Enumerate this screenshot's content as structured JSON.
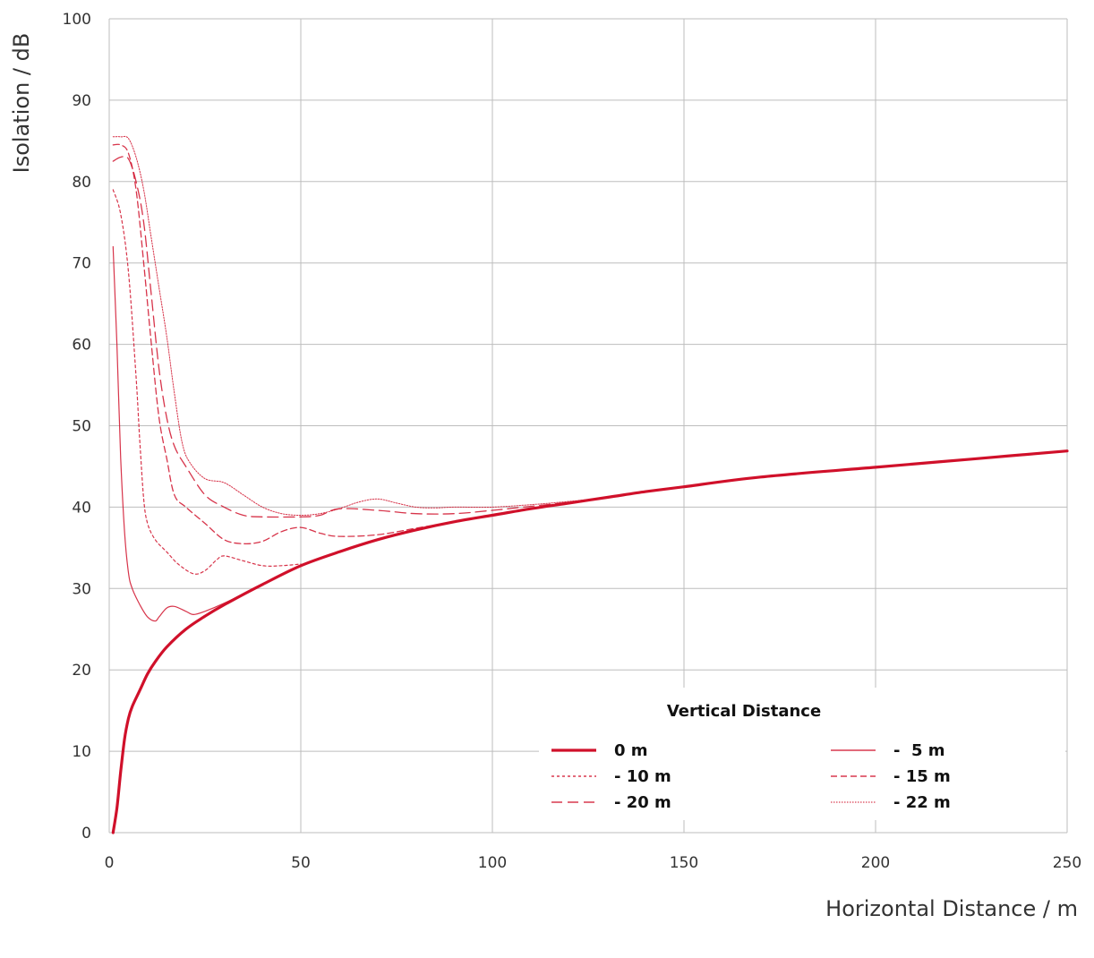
{
  "chart_data": {
    "type": "line",
    "xlabel": "Horizontal Distance / m",
    "ylabel": "Isolation / dB",
    "xlim": [
      0,
      250
    ],
    "ylim": [
      0,
      100
    ],
    "x_ticks": [
      0,
      50,
      100,
      150,
      200,
      250
    ],
    "y_ticks": [
      0,
      10,
      20,
      30,
      40,
      50,
      60,
      70,
      80,
      90,
      100
    ],
    "grid": true,
    "legend": {
      "title": "Vertical Distance",
      "placement": "bottom-right",
      "columns": 2
    },
    "series_color": "#d0102a",
    "series": [
      {
        "name": "0 m",
        "style": "solid-thick",
        "points": [
          [
            1,
            0
          ],
          [
            2,
            3
          ],
          [
            3,
            7.5
          ],
          [
            4,
            11.5
          ],
          [
            5,
            14
          ],
          [
            6,
            15.5
          ],
          [
            8,
            17.5
          ],
          [
            10,
            19.5
          ],
          [
            12,
            21
          ],
          [
            15,
            22.8
          ],
          [
            20,
            25
          ],
          [
            25,
            26.6
          ],
          [
            30,
            28
          ],
          [
            40,
            30.5
          ],
          [
            50,
            32.8
          ],
          [
            60,
            34.5
          ],
          [
            70,
            36
          ],
          [
            80,
            37.2
          ],
          [
            90,
            38.2
          ],
          [
            100,
            39
          ],
          [
            110,
            39.8
          ],
          [
            120,
            40.5
          ],
          [
            130,
            41.2
          ],
          [
            140,
            41.9
          ],
          [
            150,
            42.5
          ],
          [
            170,
            43.7
          ],
          [
            200,
            44.9
          ],
          [
            225,
            45.9
          ],
          [
            250,
            46.9
          ]
        ]
      },
      {
        "name": "-  5 m",
        "style": "solid-thin",
        "points": [
          [
            1,
            72
          ],
          [
            2,
            60
          ],
          [
            3,
            46
          ],
          [
            4,
            37
          ],
          [
            5,
            32
          ],
          [
            6,
            30
          ],
          [
            8,
            28
          ],
          [
            10,
            26.5
          ],
          [
            12,
            26
          ],
          [
            13,
            26.5
          ],
          [
            15,
            27.6
          ],
          [
            17,
            27.8
          ],
          [
            20,
            27.2
          ],
          [
            22,
            26.8
          ],
          [
            25,
            27.2
          ],
          [
            30,
            28.2
          ],
          [
            40,
            30.5
          ],
          [
            50,
            32.8
          ]
        ]
      },
      {
        "name": "- 10 m",
        "style": "short-dash",
        "points": [
          [
            1,
            79
          ],
          [
            3,
            76
          ],
          [
            5,
            69
          ],
          [
            7,
            56
          ],
          [
            8,
            48
          ],
          [
            9,
            41
          ],
          [
            10,
            38
          ],
          [
            12,
            36
          ],
          [
            15,
            34.5
          ],
          [
            18,
            33
          ],
          [
            22,
            31.8
          ],
          [
            25,
            32.2
          ],
          [
            28,
            33.5
          ],
          [
            30,
            34
          ],
          [
            35,
            33.4
          ],
          [
            40,
            32.8
          ],
          [
            45,
            32.8
          ],
          [
            50,
            33
          ]
        ]
      },
      {
        "name": "- 15 m",
        "style": "dash",
        "points": [
          [
            1,
            84.5
          ],
          [
            3,
            84.5
          ],
          [
            5,
            83.5
          ],
          [
            7,
            79
          ],
          [
            9,
            70
          ],
          [
            11,
            60
          ],
          [
            13,
            51
          ],
          [
            15,
            46
          ],
          [
            17,
            41.5
          ],
          [
            20,
            40
          ],
          [
            25,
            38
          ],
          [
            30,
            36
          ],
          [
            35,
            35.5
          ],
          [
            40,
            35.8
          ],
          [
            45,
            37
          ],
          [
            50,
            37.5
          ],
          [
            55,
            36.8
          ],
          [
            60,
            36.4
          ],
          [
            70,
            36.6
          ],
          [
            80,
            37.4
          ],
          [
            90,
            38.2
          ],
          [
            100,
            39
          ]
        ]
      },
      {
        "name": "- 20 m",
        "style": "long-dash",
        "points": [
          [
            1,
            82.5
          ],
          [
            3,
            83
          ],
          [
            5,
            82.8
          ],
          [
            7,
            80
          ],
          [
            9,
            75
          ],
          [
            11,
            66
          ],
          [
            13,
            57
          ],
          [
            15,
            51
          ],
          [
            17,
            47.5
          ],
          [
            20,
            45
          ],
          [
            25,
            41.5
          ],
          [
            30,
            40
          ],
          [
            35,
            39
          ],
          [
            40,
            38.8
          ],
          [
            50,
            38.8
          ],
          [
            55,
            39
          ],
          [
            60,
            39.8
          ],
          [
            70,
            39.6
          ],
          [
            80,
            39.2
          ],
          [
            90,
            39.2
          ],
          [
            100,
            39.6
          ],
          [
            110,
            40.1
          ],
          [
            120,
            40.6
          ],
          [
            130,
            41.2
          ]
        ]
      },
      {
        "name": "- 22 m",
        "style": "fine-dot",
        "points": [
          [
            1,
            85.5
          ],
          [
            3,
            85.5
          ],
          [
            5,
            85.3
          ],
          [
            7,
            83
          ],
          [
            9,
            79
          ],
          [
            11,
            73
          ],
          [
            13,
            67
          ],
          [
            15,
            61
          ],
          [
            17,
            54
          ],
          [
            19,
            48
          ],
          [
            21,
            45.5
          ],
          [
            25,
            43.5
          ],
          [
            30,
            43
          ],
          [
            35,
            41.5
          ],
          [
            40,
            40
          ],
          [
            45,
            39.2
          ],
          [
            50,
            39
          ],
          [
            55,
            39.2
          ],
          [
            60,
            39.8
          ],
          [
            65,
            40.6
          ],
          [
            70,
            41
          ],
          [
            75,
            40.5
          ],
          [
            80,
            40
          ],
          [
            85,
            39.9
          ],
          [
            90,
            40
          ],
          [
            100,
            40
          ],
          [
            110,
            40.3
          ],
          [
            120,
            40.7
          ],
          [
            130,
            41.2
          ],
          [
            140,
            41.9
          ]
        ]
      }
    ]
  }
}
